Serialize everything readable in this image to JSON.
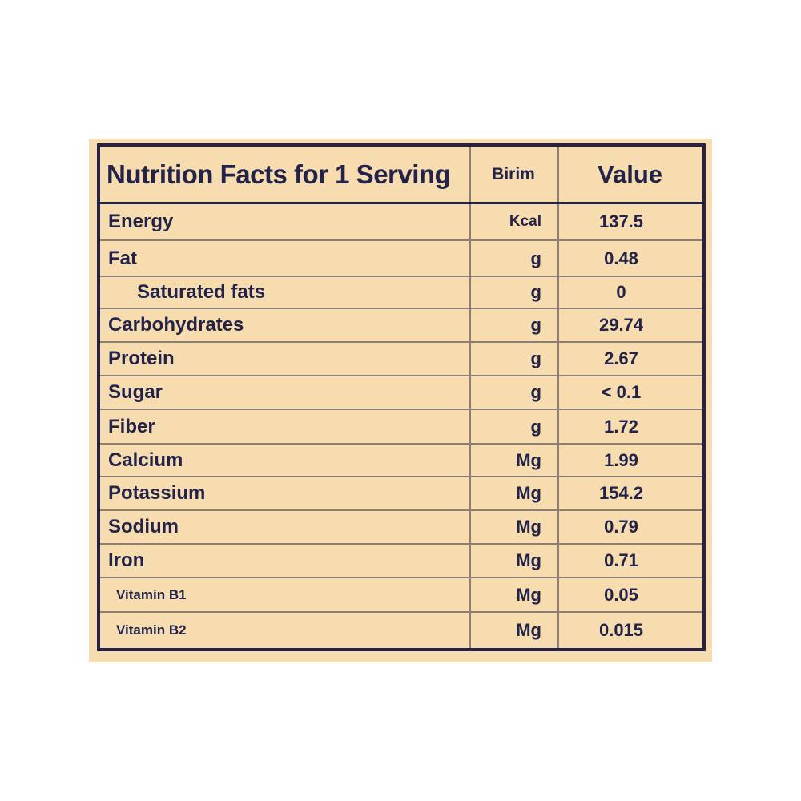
{
  "header": {
    "title": "Nutrition Facts for 1 Serving",
    "unit_label": "Birim",
    "value_label": "Value"
  },
  "rows": [
    {
      "name": "Energy",
      "unit": "Kcal",
      "value": "137.5"
    },
    {
      "name": "Fat",
      "unit": "g",
      "value": "0.48"
    },
    {
      "name": "Saturated fats",
      "unit": "g",
      "value": "0"
    },
    {
      "name": "Carbohydrates",
      "unit": "g",
      "value": "29.74"
    },
    {
      "name": "Protein",
      "unit": "g",
      "value": "2.67"
    },
    {
      "name": "Sugar",
      "unit": "g",
      "value": "< 0.1"
    },
    {
      "name": "Fiber",
      "unit": "g",
      "value": "1.72"
    },
    {
      "name": "Calcium",
      "unit": "Mg",
      "value": "1.99"
    },
    {
      "name": "Potassium",
      "unit": "Mg",
      "value": "154.2"
    },
    {
      "name": "Sodium",
      "unit": "Mg",
      "value": "0.79"
    },
    {
      "name": "Iron",
      "unit": "Mg",
      "value": "0.71"
    },
    {
      "name": "Vitamin B1",
      "unit": "Mg",
      "value": "0.05"
    },
    {
      "name": "Vitamin B2",
      "unit": "Mg",
      "value": "0.015"
    }
  ],
  "colors": {
    "background": "#f6dcae",
    "text": "#23234a",
    "border": "#23234a",
    "divider": "#8a7f74"
  }
}
